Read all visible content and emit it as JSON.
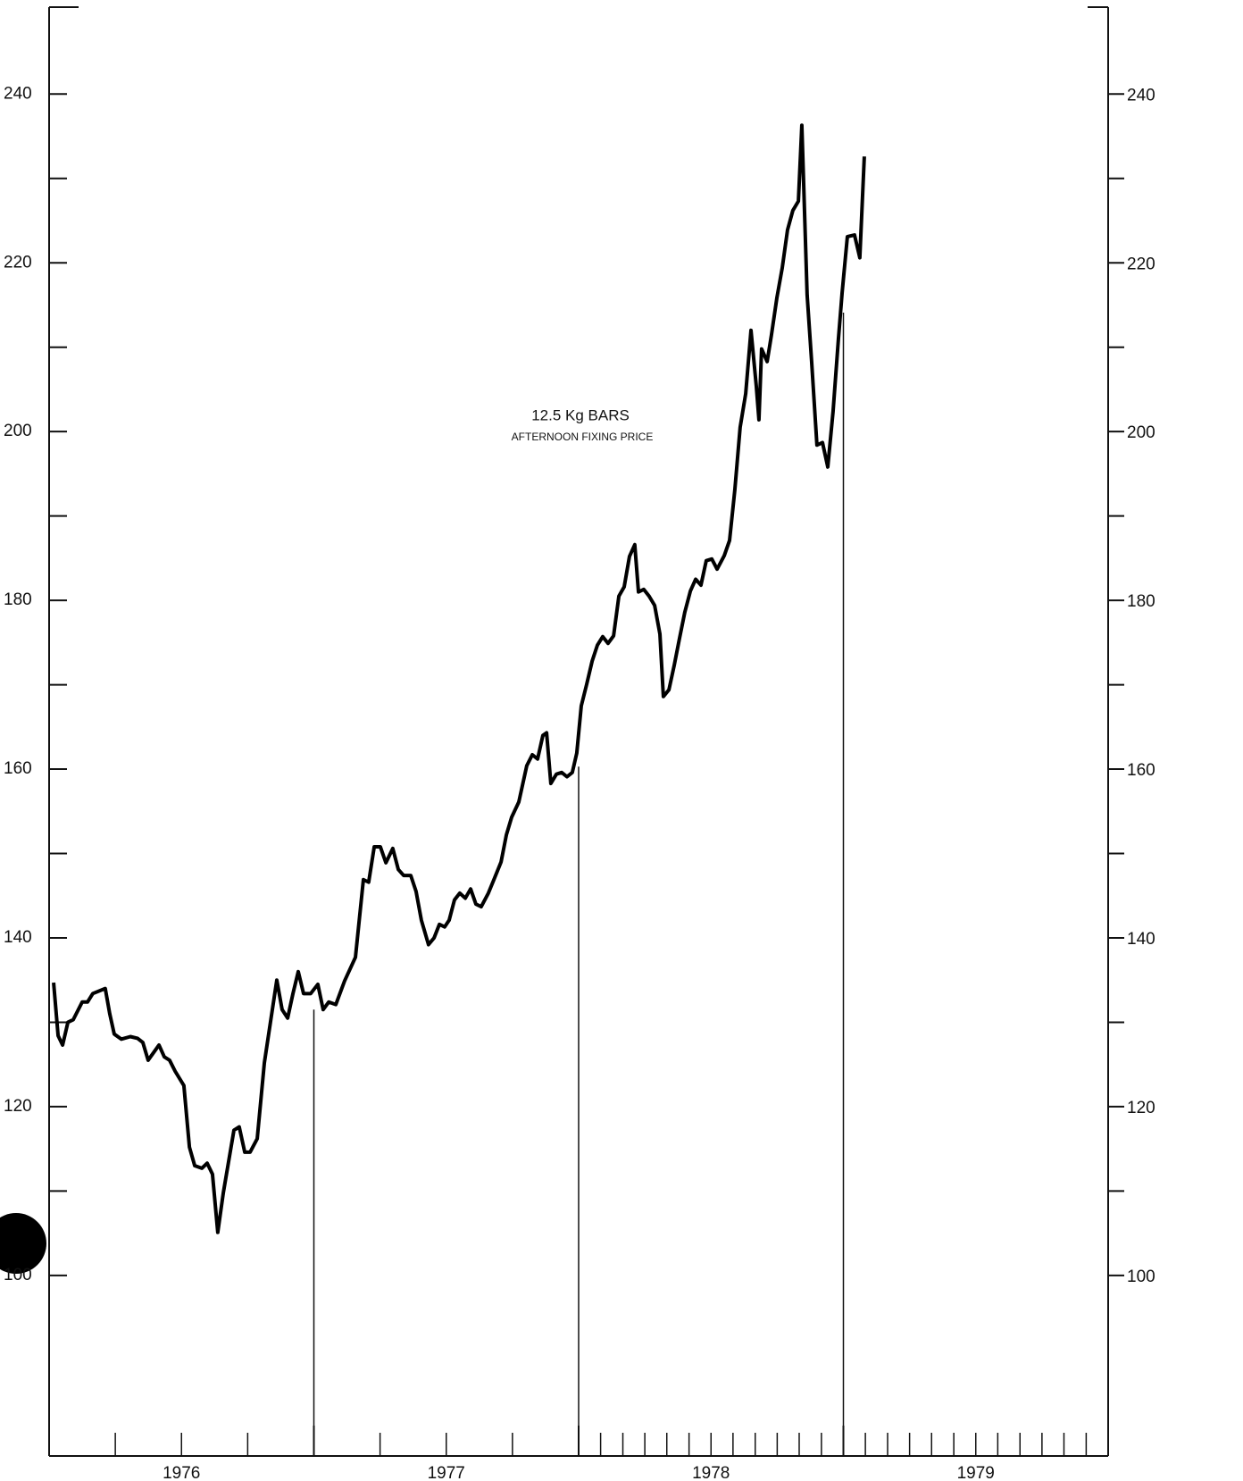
{
  "chart_data": {
    "type": "line",
    "title": "12.5 Kg BARS",
    "subtitle": "AFTERNOON FIXING PRICE",
    "x": [
      1976.017,
      1976.034,
      1976.051,
      1976.071,
      1976.091,
      1976.125,
      1976.145,
      1976.165,
      1976.212,
      1976.229,
      1976.246,
      1976.273,
      1976.307,
      1976.334,
      1976.354,
      1976.374,
      1976.415,
      1976.435,
      1976.455,
      1976.476,
      1976.509,
      1976.53,
      1976.55,
      1976.577,
      1976.597,
      1976.617,
      1976.637,
      1976.658,
      1976.678,
      1976.698,
      1976.718,
      1976.739,
      1976.759,
      1976.786,
      1976.813,
      1976.836,
      1976.86,
      1976.88,
      1976.901,
      1976.921,
      1976.941,
      1976.961,
      1976.988,
      1977.015,
      1977.035,
      1977.056,
      1977.083,
      1977.116,
      1977.157,
      1977.187,
      1977.207,
      1977.228,
      1977.251,
      1977.272,
      1977.298,
      1977.319,
      1977.339,
      1977.366,
      1977.386,
      1977.406,
      1977.433,
      1977.454,
      1977.474,
      1977.494,
      1977.511,
      1977.531,
      1977.551,
      1977.572,
      1977.592,
      1977.612,
      1977.632,
      1977.659,
      1977.68,
      1977.707,
      1977.727,
      1977.747,
      1977.774,
      1977.804,
      1977.825,
      1977.845,
      1977.865,
      1977.879,
      1977.895,
      1977.916,
      1977.936,
      1977.956,
      1977.976,
      1977.993,
      1978.01,
      1978.03,
      1978.051,
      1978.071,
      1978.091,
      1978.111,
      1978.132,
      1978.152,
      1978.172,
      1978.192,
      1978.212,
      1978.226,
      1978.246,
      1978.266,
      1978.287,
      1978.307,
      1978.32,
      1978.341,
      1978.361,
      1978.381,
      1978.401,
      1978.422,
      1978.442,
      1978.462,
      1978.482,
      1978.503,
      1978.523,
      1978.55,
      1978.57,
      1978.59,
      1978.61,
      1978.631,
      1978.651,
      1978.671,
      1978.681,
      1978.691,
      1978.712,
      1978.728,
      1978.749,
      1978.769,
      1978.789,
      1978.809,
      1978.83,
      1978.843,
      1978.863,
      1978.88,
      1978.9,
      1978.921,
      1978.941,
      1978.961,
      1978.981,
      1978.995,
      1979.015,
      1979.042,
      1979.062,
      1979.079
    ],
    "values": [
      134.7,
      128.4,
      127.3,
      130.0,
      130.3,
      132.4,
      132.4,
      133.4,
      134.0,
      131.0,
      128.6,
      128.0,
      128.3,
      128.1,
      127.6,
      125.5,
      127.3,
      125.9,
      125.5,
      124.2,
      122.5,
      115.2,
      113.0,
      112.7,
      113.3,
      112.0,
      105.1,
      109.8,
      113.5,
      117.2,
      117.6,
      114.6,
      114.6,
      116.2,
      125.2,
      130.0,
      135.0,
      131.5,
      130.5,
      133.4,
      136.0,
      133.4,
      133.4,
      134.5,
      131.5,
      132.4,
      132.1,
      134.9,
      137.7,
      146.9,
      146.6,
      150.8,
      150.8,
      148.9,
      150.6,
      148.1,
      147.4,
      147.4,
      145.5,
      142.1,
      139.2,
      140.0,
      141.6,
      141.3,
      142.1,
      144.5,
      145.3,
      144.7,
      145.8,
      144.0,
      143.7,
      145.3,
      146.9,
      149.0,
      152.2,
      154.3,
      156.1,
      160.4,
      161.7,
      161.2,
      164.0,
      164.3,
      158.3,
      159.4,
      159.6,
      159.1,
      159.6,
      161.9,
      167.5,
      170.0,
      172.8,
      174.7,
      175.7,
      174.9,
      175.8,
      180.5,
      181.6,
      185.2,
      186.6,
      181.0,
      181.3,
      180.5,
      179.4,
      176.0,
      168.6,
      169.4,
      172.3,
      175.5,
      178.6,
      181.1,
      182.5,
      181.8,
      184.7,
      184.9,
      183.7,
      185.3,
      187.1,
      193.1,
      200.5,
      204.5,
      212.0,
      205.4,
      201.4,
      209.8,
      208.3,
      211.4,
      215.9,
      219.4,
      223.9,
      226.2,
      227.3,
      236.3,
      216.2,
      208.3,
      198.4,
      198.7,
      195.8,
      202.4,
      210.9,
      216.4,
      223.1,
      223.3,
      220.6,
      232.6
    ],
    "color": "#000000",
    "droplines": {
      "x": [
        1977,
        1978,
        1979
      ],
      "values": [
        131.5,
        160.3,
        214.1
      ]
    },
    "xlim": [
      1976,
      1980
    ],
    "xticks": [
      {
        "value": 1976,
        "label": "1976"
      },
      {
        "value": 1977,
        "label": "1977"
      },
      {
        "value": 1978,
        "label": "1978"
      },
      {
        "value": 1979,
        "label": "1979"
      }
    ],
    "xminorticks": [
      1976.25,
      1976.5,
      1976.75,
      1977.25,
      1977.5,
      1977.75,
      1978.083,
      1978.167,
      1978.25,
      1978.333,
      1978.417,
      1978.5,
      1978.583,
      1978.667,
      1978.75,
      1978.833,
      1978.917,
      1979.083,
      1979.167,
      1979.25,
      1979.333,
      1979.417,
      1979.5,
      1979.583,
      1979.667,
      1979.75,
      1979.833,
      1979.917
    ],
    "ylim": [
      78.6,
      250.3
    ],
    "yticks": [
      100,
      120,
      140,
      160,
      180,
      200,
      220,
      240
    ],
    "yminorticks": [
      110,
      130,
      150,
      170,
      190,
      210,
      230
    ]
  }
}
